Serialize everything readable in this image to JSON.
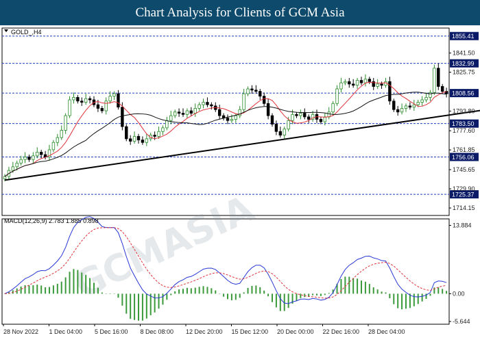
{
  "header": {
    "title": "Chart Analysis for Clients of GCM Asia"
  },
  "chart_data": [
    {
      "type": "candlestick",
      "symbol_label": "GOLD_,H4",
      "ylim": [
        1708,
        1862
      ],
      "y_ticks": [
        "1841.50",
        "1825.75",
        "1793.80",
        "1777.60",
        "1761.85",
        "1745.65",
        "1729.90",
        "1714.15"
      ],
      "y_tick_values": [
        1841.5,
        1825.75,
        1793.8,
        1777.6,
        1761.85,
        1745.65,
        1729.9,
        1714.15
      ],
      "x_ticks": [
        "28 Nov 2022",
        "1 Dec 04:00",
        "5 Dec 16:00",
        "8 Dec 08:00",
        "12 Dec 20:00",
        "15 Dec 12:00",
        "20 Dec 00:00",
        "22 Dec 16:00",
        "28 Dec 04:00"
      ],
      "levels": [
        {
          "label": "1855.41",
          "value": 1855.41
        },
        {
          "label": "1832.99",
          "value": 1832.99
        },
        {
          "label": "1808.56",
          "value": 1808.56
        },
        {
          "label": "1783.50",
          "value": 1783.5
        },
        {
          "label": "1756.06",
          "value": 1756.06
        },
        {
          "label": "1725.37",
          "value": 1725.37
        }
      ],
      "close": [
        1740,
        1745,
        1748,
        1751,
        1754,
        1756,
        1754,
        1757,
        1760,
        1758,
        1756,
        1762,
        1768,
        1772,
        1778,
        1790,
        1803,
        1805,
        1802,
        1801,
        1804,
        1803,
        1799,
        1796,
        1794,
        1802,
        1806,
        1808,
        1797,
        1781,
        1771,
        1769,
        1773,
        1770,
        1768,
        1771,
        1774,
        1773,
        1777,
        1780,
        1786,
        1790,
        1793,
        1792,
        1791,
        1794,
        1792,
        1796,
        1799,
        1801,
        1799,
        1798,
        1795,
        1790,
        1788,
        1786,
        1787,
        1790,
        1795,
        1808,
        1812,
        1811,
        1810,
        1806,
        1800,
        1790,
        1783,
        1777,
        1774,
        1779,
        1786,
        1791,
        1790,
        1792,
        1789,
        1787,
        1791,
        1787,
        1785,
        1789,
        1793,
        1800,
        1812,
        1817,
        1818,
        1816,
        1815,
        1819,
        1817,
        1820,
        1818,
        1814,
        1816,
        1815,
        1818,
        1802,
        1795,
        1793,
        1796,
        1798,
        1797,
        1799,
        1801,
        1803,
        1805,
        1809,
        1829,
        1814,
        1810,
        1808
      ],
      "trend_line": {
        "from": [
          1737,
          0
        ],
        "to": [
          1797,
          123
        ]
      },
      "watermark": "GCMASIA"
    },
    {
      "type": "histogram+line",
      "label": "MACD(12,26,9) 2.783 1.885 0.898",
      "ylim": [
        -6.2,
        15.2
      ],
      "y_ticks": [
        "13.884",
        "0.00",
        "-5.644"
      ],
      "y_tick_values": [
        13.884,
        0,
        -5.644
      ]
    }
  ],
  "colors": {
    "banner": "#0d4a6b",
    "bull": "#2a8c2a",
    "bear": "#000000",
    "ma_red": "#e0313a",
    "ma_black": "#111111",
    "level": "#1f3fbf",
    "macd_line": "#2838d6",
    "macd_signal": "#e0313a",
    "macd_hist": "#3a9a3a"
  }
}
